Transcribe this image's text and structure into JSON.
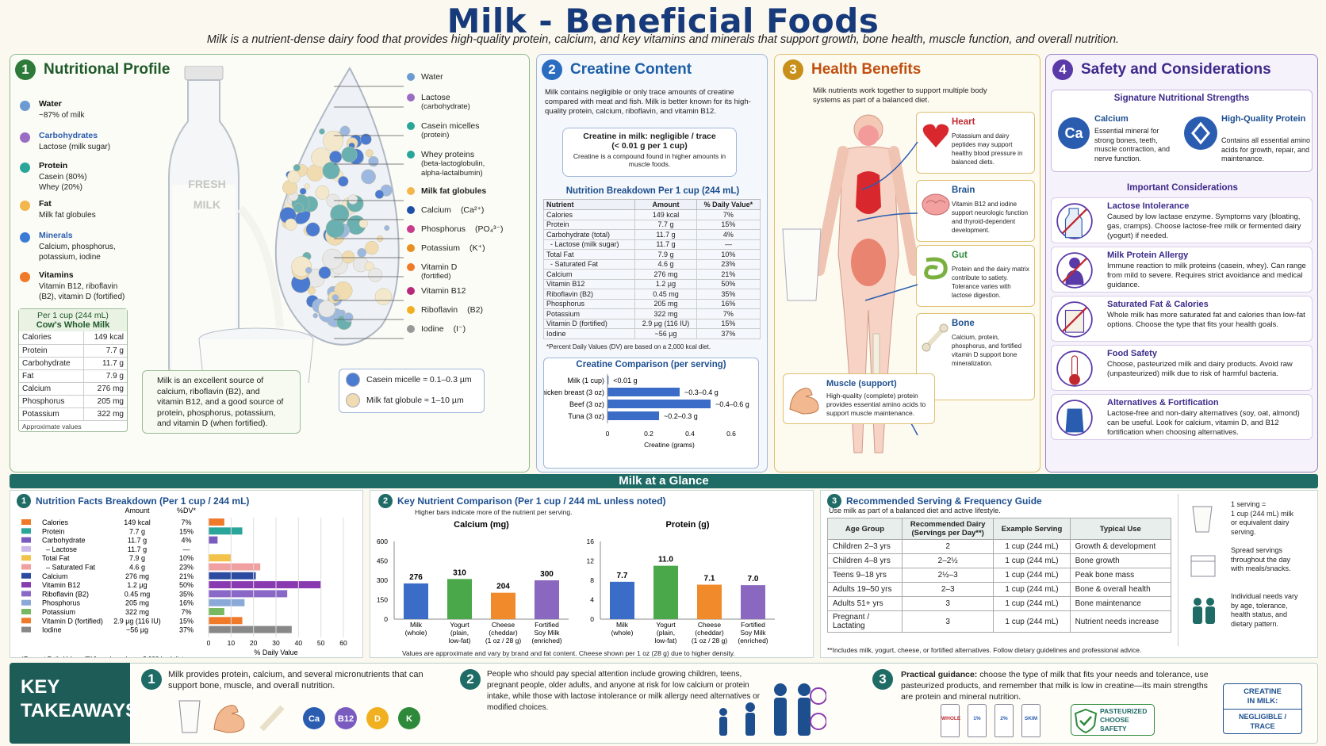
{
  "title": "Milk - Beneficial Foods",
  "subtitle": "Milk is a nutrient-dense dairy food that provides high-quality protein, calcium, and key vitamins and minerals that support growth, bone health, muscle function, and overall nutrition.",
  "p1": {
    "num": "1",
    "title": "Nutritional Profile",
    "items": [
      {
        "name": "Water",
        "desc": "~87% of milk",
        "color": "#6b9bd2"
      },
      {
        "name": "Carbohydrates",
        "desc": "Lactose (milk sugar)",
        "color": "#9b6cc4"
      },
      {
        "name": "Protein",
        "desc": "Casein (80%)\nWhey (20%)",
        "color": "#2aa59a"
      },
      {
        "name": "Fat",
        "desc": "Milk fat globules",
        "color": "#f2b64a"
      },
      {
        "name": "Minerals",
        "desc": "Calcium, phosphorus,\npotassium, iodine",
        "color": "#3a7bd5"
      },
      {
        "name": "Vitamins",
        "desc": "Vitamin B12, riboflavin\n(B2), vitamin D (fortified)",
        "color": "#f07a2a"
      }
    ],
    "bottle_label": "FRESH\nMILK",
    "card_title1": "Per 1 cup (244 mL)",
    "card_title2": "Cow's Whole Milk",
    "card_rows": [
      [
        "Calories",
        "149 kcal"
      ],
      [
        "Protein",
        "7.7 g"
      ],
      [
        "Carbohydrate",
        "11.7 g"
      ],
      [
        "Fat",
        "7.9 g"
      ],
      [
        "Calcium",
        "276 mg"
      ],
      [
        "Phosphorus",
        "205 mg"
      ],
      [
        "Potassium",
        "322 mg"
      ]
    ],
    "card_note": "Approximate values",
    "source_text": "Milk is an excellent source of calcium, riboflavin (B2), and vitamin B12, and a good source of protein, phosphorus, potassium, and vitamin D (when fortified).",
    "drop_labels": [
      {
        "t": "Water",
        "s": "",
        "c": "#6b9bd2"
      },
      {
        "t": "Lactose",
        "s": "(carbohydrate)",
        "c": "#9b6cc4"
      },
      {
        "t": "Casein micelles",
        "s": "(protein)",
        "c": "#2aa59a"
      },
      {
        "t": "Whey proteins",
        "s": "(beta-lactoglobulin,\nalpha-lactalbumin)",
        "c": "#2aa59a"
      },
      {
        "t": "Milk fat globules",
        "s": "",
        "c": "#f2b64a",
        "bold": true
      },
      {
        "t": "Calcium",
        "s": "(Ca²⁺)",
        "c": "#1d4fa8",
        "inline": true
      },
      {
        "t": "Phosphorus",
        "s": "(PO₄³⁻)",
        "c": "#c83a8a",
        "inline": true
      },
      {
        "t": "Potassium",
        "s": "(K⁺)",
        "c": "#e89020",
        "inline": true
      },
      {
        "t": "Vitamin D",
        "s": "(fortified)",
        "c": "#f07a2a"
      },
      {
        "t": "Vitamin B12",
        "s": "",
        "c": "#b8287a"
      },
      {
        "t": "Riboflavin",
        "s": "(B2)",
        "c": "#f0b020",
        "inline": true
      },
      {
        "t": "Iodine",
        "s": "(I⁻)",
        "c": "#999999",
        "inline": true
      }
    ],
    "size_legend": [
      [
        "Casein micelle ≈ 0.1–0.3 µm",
        "#4a7bd0"
      ],
      [
        "Milk fat globule ≈ 1–10 µm",
        "#f0dcb0"
      ]
    ]
  },
  "p2": {
    "num": "2",
    "title": "Creatine Content",
    "intro": "Milk contains negligible or only trace amounts of creatine compared with meat and fish. Milk is better known for its high-quality protein, calcium, riboflavin, and vitamin B12.",
    "box_title": "Creatine in milk: negligible / trace",
    "box_sub": "(< 0.01 g per 1 cup)",
    "box_note": "Creatine is a compound found in higher amounts in muscle foods.",
    "table_title": "Nutrition Breakdown Per 1 cup (244 mL)",
    "table_head": [
      "Nutrient",
      "Amount",
      "% Daily Value*"
    ],
    "table_rows": [
      [
        "Calories",
        "149 kcal",
        "7%"
      ],
      [
        "Protein",
        "7.7 g",
        "15%"
      ],
      [
        "Carbohydrate (total)",
        "11.7 g",
        "4%"
      ],
      [
        "  - Lactose (milk sugar)",
        "11.7 g",
        "—"
      ],
      [
        "Total Fat",
        "7.9 g",
        "10%"
      ],
      [
        "  - Saturated Fat",
        "4.6 g",
        "23%"
      ],
      [
        "Calcium",
        "276 mg",
        "21%"
      ],
      [
        "Vitamin B12",
        "1.2 µg",
        "50%"
      ],
      [
        "Riboflavin (B2)",
        "0.45 mg",
        "35%"
      ],
      [
        "Phosphorus",
        "205 mg",
        "16%"
      ],
      [
        "Potassium",
        "322 mg",
        "7%"
      ],
      [
        "Vitamin D (fortified)",
        "2.9 µg (116 IU)",
        "15%"
      ],
      [
        "Iodine",
        "~56 µg",
        "37%"
      ]
    ],
    "table_note": "*Percent Daily Values (DV) are based on a 2,000 kcal diet.",
    "comp_title": "Creatine Comparison (per serving)",
    "comp_xlabel": "Creatine (grams)",
    "comp_ticks": [
      "0",
      "0.2",
      "0.4",
      "0.6"
    ]
  },
  "p3": {
    "num": "3",
    "title": "Health Benefits",
    "intro": "Milk nutrients work together to support multiple body systems as part of a balanced diet.",
    "cards": [
      {
        "t": "Heart",
        "d": "Potassium and dairy peptides may support healthy blood pressure in balanced diets.",
        "c": "#c0282e"
      },
      {
        "t": "Brain",
        "d": "Vitamin B12 and iodine support neurologic function and thyroid-dependent development.",
        "c": "#1d4f8f"
      },
      {
        "t": "Gut",
        "d": "Protein and the dairy matrix contribute to satiety. Tolerance varies with lactose digestion.",
        "c": "#2e8a3a"
      },
      {
        "t": "Bone",
        "d": "Calcium, protein, phosphorus, and fortified vitamin D support bone mineralization.",
        "c": "#1d4f8f"
      }
    ],
    "muscle_t": "Muscle (support)",
    "muscle_d": "High-quality (complete) protein provides essential amino acids to support muscle maintenance."
  },
  "p4": {
    "num": "4",
    "title": "Safety and Considerations",
    "sig_title": "Signature Nutritional Strengths",
    "ca_badge": "Ca",
    "ca_t": "Calcium",
    "ca_d": "Essential mineral for strong bones, teeth, muscle contraction, and nerve function.",
    "pr_t": "High-Quality Protein",
    "pr_d": "Contains all essential amino acids for growth, repair, and maintenance.",
    "imp_title": "Important Considerations",
    "items": [
      {
        "t": "Lactose Intolerance",
        "d": "Caused by low lactase enzyme. Symptoms vary (bloating, gas, cramps). Choose lactose-free milk or fermented dairy (yogurt) if needed."
      },
      {
        "t": "Milk Protein Allergy",
        "d": "Immune reaction to milk proteins (casein, whey). Can range from mild to severe. Requires strict avoidance and medical guidance."
      },
      {
        "t": "Saturated Fat & Calories",
        "d": "Whole milk has more saturated fat and calories than low-fat options. Choose the type that fits your health goals."
      },
      {
        "t": "Food Safety",
        "d": "Choose, pasteurized milk and dairy products. Avoid raw (unpasteurized) milk due to risk of harmful bacteria."
      },
      {
        "t": "Alternatives & Fortification",
        "d": "Lactose-free and non-dairy alternatives (soy, oat, almond) can be useful. Look for calcium, vitamin D, and B12 fortification when choosing alternatives."
      }
    ]
  },
  "glance": "Milk at a Glance",
  "nf": {
    "num": "1",
    "title": "Nutrition Facts Breakdown (Per 1 cup / 244 mL)",
    "h_amount": "Amount",
    "h_dv": "%DV*",
    "rows": [
      [
        "Calories",
        "149 kcal",
        "7%",
        7,
        "#f07a2a"
      ],
      [
        "Protein",
        "7.7 g",
        "15%",
        15,
        "#2aa59a"
      ],
      [
        "Carbohydrate",
        "11.7 g",
        "4%",
        4,
        "#7a5cc0"
      ],
      [
        "  – Lactose",
        "11.7 g",
        "—",
        0,
        "#c9b8e8"
      ],
      [
        "Total Fat",
        "7.9 g",
        "10%",
        10,
        "#f2c24a"
      ],
      [
        "  – Saturated Fat",
        "4.6 g",
        "23%",
        23,
        "#f0a0a0"
      ],
      [
        "Calcium",
        "276 mg",
        "21%",
        21,
        "#2c4aa0"
      ],
      [
        "Vitamin B12",
        "1.2 µg",
        "50%",
        50,
        "#8a3ab0"
      ],
      [
        "Riboflavin (B2)",
        "0.45 mg",
        "35%",
        35,
        "#8a68c8"
      ],
      [
        "Phosphorus",
        "205 mg",
        "16%",
        16,
        "#8aa8d8"
      ],
      [
        "Potassium",
        "322 mg",
        "7%",
        7,
        "#78b860"
      ],
      [
        "Vitamin D (fortified)",
        "2.9 µg (116 IU)",
        "15%",
        15,
        "#f07a2a"
      ],
      [
        "Iodine",
        "~56 µg",
        "37%",
        37,
        "#888888"
      ]
    ],
    "ticks": [
      "0",
      "10",
      "20",
      "30",
      "40",
      "50",
      "60"
    ],
    "xlabel": "% Daily Value",
    "note": "*Percent Daily Values (DV) are based on a 2,000 kcal diet."
  },
  "kc": {
    "num": "2",
    "title": "Key Nutrient Comparison (Per 1 cup / 244 mL unless noted)",
    "sub": "Higher bars indicate more of the nutrient per serving.",
    "note": "Values are approximate and vary by brand and fat content. Cheese shown per 1 oz (28 g) due to higher density."
  },
  "rs": {
    "num": "3",
    "title": "Recommended Serving & Frequency Guide",
    "sub": "Use milk as part of a balanced diet and active lifestyle.",
    "head": [
      "Age Group",
      "Recommended Dairy\n(Servings per Day**)",
      "Example Serving",
      "Typical Use"
    ],
    "rows": [
      [
        "Children 2–3 yrs",
        "2",
        "1 cup (244 mL)",
        "Growth & development"
      ],
      [
        "Children 4–8 yrs",
        "2–2½",
        "1 cup (244 mL)",
        "Bone growth"
      ],
      [
        "Teens 9–18 yrs",
        "2½–3",
        "1 cup (244 mL)",
        "Peak bone mass"
      ],
      [
        "Adults 19–50 yrs",
        "2–3",
        "1 cup (244 mL)",
        "Bone & overall health"
      ],
      [
        "Adults 51+ yrs",
        "3",
        "1 cup (244 mL)",
        "Bone maintenance"
      ],
      [
        "Pregnant /\nLactating",
        "3",
        "1 cup (244 mL)",
        "Nutrient needs increase"
      ]
    ],
    "note": "**Includes milk, yogurt, cheese, or fortified alternatives. Follow dietary guidelines and professional advice.",
    "side": [
      "1 serving =\n1 cup (244 mL) milk\nor equivalent dairy\nserving.",
      "Spread servings\nthroughout the day\nwith meals/snacks.",
      "Individual needs vary\nby age, tolerance,\nhealth status, and\ndietary pattern."
    ]
  },
  "kt": {
    "title": "KEY\nTAKEAWAYS",
    "t1": "Milk provides protein, calcium, and several micronutrients that can support bone, muscle, and overall nutrition.",
    "t2": "People who should pay special attention include growing children, teens, pregnant people, older adults, and anyone at risk for low calcium or protein intake, while those with lactose intolerance or milk allergy need alternatives or modified choices.",
    "t3b": "Practical guidance:",
    "t3": " choose the type of milk that fits your needs and tolerance, use pasteurized products, and remember that milk is low in creatine—its main strengths are protein and mineral nutrition.",
    "badges": [
      "Ca",
      "B12",
      "D",
      "K"
    ],
    "cartons": [
      "WHOLE",
      "1%",
      "2%",
      "SKIM"
    ],
    "past": "PASTEURIZED\nCHOOSE\nSAFETY",
    "cr1": "CREATINE\nIN MILK:",
    "cr2": "NEGLIGIBLE /\nTRACE"
  },
  "chart_data": [
    {
      "type": "bar",
      "title": "Creatine Comparison (per serving)",
      "categories": [
        "Milk (1 cup)",
        "Chicken breast (3 oz)",
        "Beef (3 oz)",
        "Tuna (3 oz)"
      ],
      "values": [
        0.005,
        0.35,
        0.5,
        0.25
      ],
      "value_labels": [
        "<0.01 g",
        "~0.3–0.4 g",
        "~0.4–0.6 g",
        "~0.2–0.3 g"
      ],
      "xlabel": "Creatine (grams)",
      "xlim": [
        0,
        0.6
      ],
      "orientation": "horizontal"
    },
    {
      "type": "bar",
      "title": "Nutrition Facts Breakdown (Per 1 cup / 244 mL)",
      "categories": [
        "Calories",
        "Protein",
        "Carbohydrate",
        "– Lactose",
        "Total Fat",
        "– Saturated Fat",
        "Calcium",
        "Vitamin B12",
        "Riboflavin (B2)",
        "Phosphorus",
        "Potassium",
        "Vitamin D (fortified)",
        "Iodine"
      ],
      "values": [
        7,
        15,
        4,
        0,
        10,
        23,
        21,
        50,
        35,
        16,
        7,
        15,
        37
      ],
      "xlabel": "% Daily Value",
      "xlim": [
        0,
        60
      ],
      "orientation": "horizontal"
    },
    {
      "type": "bar",
      "title": "Calcium (mg)",
      "categories": [
        "Milk (whole)",
        "Yogurt (plain, low-fat)",
        "Cheese (cheddar) (1 oz / 28 g)",
        "Fortified Soy Milk (enriched)"
      ],
      "values": [
        276,
        310,
        204,
        300
      ],
      "ylim": [
        0,
        600
      ],
      "yticks": [
        "0",
        "150",
        "300",
        "450",
        "600"
      ],
      "colors": [
        "#3a6cc8",
        "#4aa84a",
        "#f08a2a",
        "#8a68c0"
      ]
    },
    {
      "type": "bar",
      "title": "Protein (g)",
      "categories": [
        "Milk (whole)",
        "Yogurt (plain, low-fat)",
        "Cheese (cheddar) (1 oz / 28 g)",
        "Fortified Soy Milk (enriched)"
      ],
      "values": [
        7.7,
        11.0,
        7.1,
        7.0
      ],
      "value_labels": [
        "7.7",
        "11.0",
        "7.1",
        "7.0"
      ],
      "ylim": [
        0,
        16
      ],
      "yticks": [
        "0",
        "4",
        "8",
        "12",
        "16"
      ],
      "colors": [
        "#3a6cc8",
        "#4aa84a",
        "#f08a2a",
        "#8a68c0"
      ]
    }
  ]
}
